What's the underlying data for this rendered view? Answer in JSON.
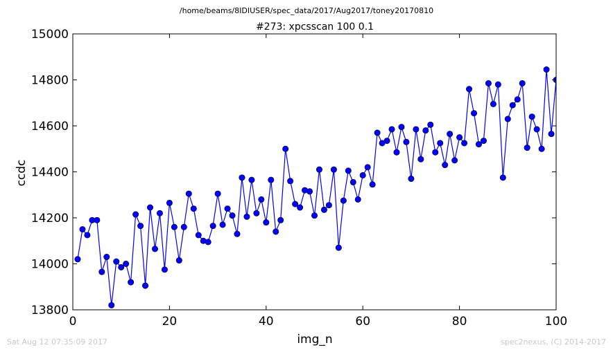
{
  "suptitle": "/home/beams/8IDIUSER/spec_data/2017/Aug2017/toney20170810",
  "footer": {
    "left": "Sat Aug 12 07:35:09 2017",
    "right": "spec2nexus, (C) 2014-2017"
  },
  "chart_data": {
    "type": "line",
    "title": "#273: xpcsscan 100 0.1",
    "xlabel": "img_n",
    "ylabel": "ccdc",
    "xlim": [
      0,
      100
    ],
    "ylim": [
      13800,
      15000
    ],
    "xticks": [
      0,
      20,
      40,
      60,
      80,
      100
    ],
    "yticks": [
      13800,
      14000,
      14200,
      14400,
      14600,
      14800,
      15000
    ],
    "grid": false,
    "series": [
      {
        "color": "#0000ff",
        "marker": "circle",
        "x": [
          1,
          2,
          3,
          4,
          5,
          6,
          7,
          8,
          9,
          10,
          11,
          12,
          13,
          14,
          15,
          16,
          17,
          18,
          19,
          20,
          21,
          22,
          23,
          24,
          25,
          26,
          27,
          28,
          29,
          30,
          31,
          32,
          33,
          34,
          35,
          36,
          37,
          38,
          39,
          40,
          41,
          42,
          43,
          44,
          45,
          46,
          47,
          48,
          49,
          50,
          51,
          52,
          53,
          54,
          55,
          56,
          57,
          58,
          59,
          60,
          61,
          62,
          63,
          64,
          65,
          66,
          67,
          68,
          69,
          70,
          71,
          72,
          73,
          74,
          75,
          76,
          77,
          78,
          79,
          80,
          81,
          82,
          83,
          84,
          85,
          86,
          87,
          88,
          89,
          90,
          91,
          92,
          93,
          94,
          95,
          96,
          97,
          98,
          99,
          100
        ],
        "y": [
          14020,
          14150,
          14125,
          14190,
          14190,
          13965,
          14030,
          13820,
          14010,
          13985,
          14000,
          13920,
          14215,
          14165,
          13905,
          14245,
          14065,
          14220,
          13975,
          14265,
          14160,
          14015,
          14160,
          14305,
          14240,
          14125,
          14100,
          14095,
          14165,
          14305,
          14170,
          14240,
          14210,
          14130,
          14375,
          14205,
          14365,
          14220,
          14280,
          14180,
          14365,
          14140,
          14190,
          14500,
          14360,
          14260,
          14245,
          14320,
          14315,
          14210,
          14410,
          14235,
          14255,
          14410,
          14070,
          14275,
          14405,
          14355,
          14280,
          14385,
          14420,
          14345,
          14570,
          14525,
          14535,
          14585,
          14485,
          14595,
          14530,
          14370,
          14585,
          14455,
          14580,
          14605,
          14485,
          14525,
          14430,
          14565,
          14450,
          14550,
          14525,
          14760,
          14655,
          14520,
          14535,
          14785,
          14695,
          14780,
          14375,
          14630,
          14690,
          14715,
          14785,
          14505,
          14640,
          14585,
          14500,
          14845,
          14565,
          14800
        ]
      }
    ]
  }
}
